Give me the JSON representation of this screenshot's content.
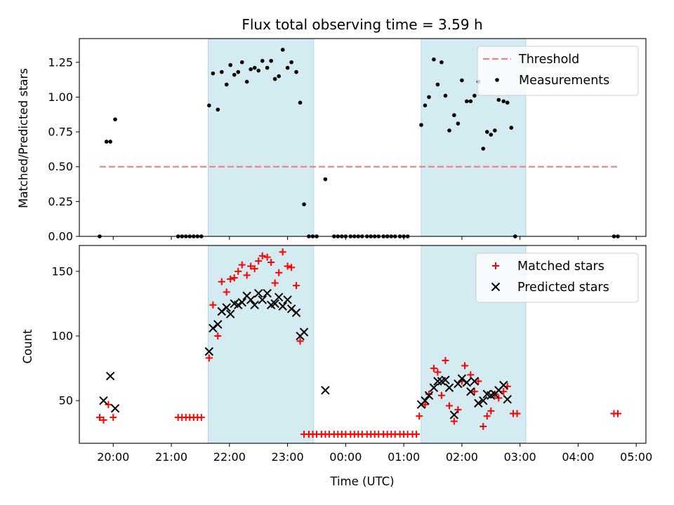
{
  "chart_data": [
    {
      "type": "scatter",
      "title": "Flux total observing time = 3.59 h",
      "xlabel": "",
      "ylabel": "Matched/Predicted stars",
      "xlim": [
        "19:25",
        "05:10"
      ],
      "ylim": [
        0,
        1.42
      ],
      "yticks": [
        0.0,
        0.25,
        0.5,
        0.75,
        1.0,
        1.25
      ],
      "ytick_labels": [
        "0.00",
        "0.25",
        "0.50",
        "0.75",
        "1.00",
        "1.25"
      ],
      "xticks": [
        "20:00",
        "21:00",
        "22:00",
        "23:00",
        "00:00",
        "01:00",
        "02:00",
        "03:00",
        "04:00",
        "05:00"
      ],
      "legend": "top-right",
      "shaded_intervals": [
        [
          "21:38",
          "23:27"
        ],
        [
          "01:18",
          "03:06"
        ]
      ],
      "series": [
        {
          "name": "Threshold",
          "kind": "dashed-line",
          "color": "#f08080",
          "points": [
            [
              "19:46",
              0.5
            ],
            [
              "04:42",
              0.5
            ]
          ]
        },
        {
          "name": "Measurements",
          "kind": "dot",
          "color": "#000000",
          "points": [
            [
              "19:46",
              0.0
            ],
            [
              "19:53",
              0.68
            ],
            [
              "19:57",
              0.68
            ],
            [
              "20:02",
              0.84
            ],
            [
              "21:07",
              0.0
            ],
            [
              "21:11",
              0.0
            ],
            [
              "21:15",
              0.0
            ],
            [
              "21:19",
              0.0
            ],
            [
              "21:23",
              0.0
            ],
            [
              "21:27",
              0.0
            ],
            [
              "21:31",
              0.0
            ],
            [
              "21:39",
              0.94
            ],
            [
              "21:43",
              1.17
            ],
            [
              "21:48",
              0.91
            ],
            [
              "21:52",
              1.18
            ],
            [
              "21:57",
              1.09
            ],
            [
              "22:01",
              1.23
            ],
            [
              "22:05",
              1.16
            ],
            [
              "22:09",
              1.18
            ],
            [
              "22:13",
              1.25
            ],
            [
              "22:18",
              1.11
            ],
            [
              "22:22",
              1.2
            ],
            [
              "22:26",
              1.21
            ],
            [
              "22:30",
              1.19
            ],
            [
              "22:34",
              1.26
            ],
            [
              "22:39",
              1.21
            ],
            [
              "22:43",
              1.26
            ],
            [
              "22:47",
              1.13
            ],
            [
              "22:51",
              1.15
            ],
            [
              "22:55",
              1.34
            ],
            [
              "23:00",
              1.21
            ],
            [
              "23:04",
              1.25
            ],
            [
              "23:09",
              1.18
            ],
            [
              "23:13",
              0.96
            ],
            [
              "23:17",
              0.23
            ],
            [
              "23:22",
              0.0
            ],
            [
              "23:26",
              0.0
            ],
            [
              "23:30",
              0.0
            ],
            [
              "23:39",
              0.41
            ],
            [
              "23:48",
              0.0
            ],
            [
              "23:52",
              0.0
            ],
            [
              "23:56",
              0.0
            ],
            [
              "00:00",
              0.0
            ],
            [
              "00:05",
              0.0
            ],
            [
              "00:09",
              0.0
            ],
            [
              "00:13",
              0.0
            ],
            [
              "00:17",
              0.0
            ],
            [
              "00:22",
              0.0
            ],
            [
              "00:26",
              0.0
            ],
            [
              "00:30",
              0.0
            ],
            [
              "00:34",
              0.0
            ],
            [
              "00:39",
              0.0
            ],
            [
              "00:43",
              0.0
            ],
            [
              "00:47",
              0.0
            ],
            [
              "00:51",
              0.0
            ],
            [
              "00:56",
              0.0
            ],
            [
              "01:00",
              0.0
            ],
            [
              "01:04",
              0.0
            ],
            [
              "01:18",
              0.8
            ],
            [
              "01:22",
              0.94
            ],
            [
              "01:26",
              1.0
            ],
            [
              "01:31",
              1.27
            ],
            [
              "01:35",
              1.09
            ],
            [
              "01:39",
              1.25
            ],
            [
              "01:43",
              1.01
            ],
            [
              "01:47",
              0.76
            ],
            [
              "01:52",
              0.87
            ],
            [
              "01:56",
              0.81
            ],
            [
              "02:00",
              1.12
            ],
            [
              "02:05",
              0.97
            ],
            [
              "02:09",
              0.97
            ],
            [
              "02:13",
              1.01
            ],
            [
              "02:17",
              1.11
            ],
            [
              "02:22",
              0.63
            ],
            [
              "02:26",
              0.75
            ],
            [
              "02:30",
              0.73
            ],
            [
              "02:34",
              0.76
            ],
            [
              "02:38",
              0.98
            ],
            [
              "02:43",
              0.97
            ],
            [
              "02:47",
              0.96
            ],
            [
              "02:51",
              0.78
            ],
            [
              "02:55",
              0.0
            ],
            [
              "04:37",
              0.0
            ],
            [
              "04:41",
              0.0
            ]
          ]
        }
      ]
    },
    {
      "type": "scatter",
      "title": "",
      "xlabel": "Time (UTC)",
      "ylabel": "Count",
      "xlim": [
        "19:25",
        "05:10"
      ],
      "ylim": [
        17,
        170
      ],
      "yticks": [
        50,
        100,
        150
      ],
      "ytick_labels": [
        "50",
        "100",
        "150"
      ],
      "xticks": [
        "20:00",
        "21:00",
        "22:00",
        "23:00",
        "00:00",
        "01:00",
        "02:00",
        "03:00",
        "04:00",
        "05:00"
      ],
      "xtick_labels": [
        "20:00",
        "21:00",
        "22:00",
        "23:00",
        "00:00",
        "01:00",
        "02:00",
        "03:00",
        "04:00",
        "05:00"
      ],
      "legend": "top-right",
      "shaded_intervals": [
        [
          "21:38",
          "23:27"
        ],
        [
          "01:18",
          "03:06"
        ]
      ],
      "series": [
        {
          "name": "Matched stars",
          "kind": "plus",
          "color": "#ff0000",
          "points": [
            [
              "19:46",
              37
            ],
            [
              "19:50",
              35
            ],
            [
              "19:55",
              47
            ],
            [
              "20:00",
              37
            ],
            [
              "21:07",
              37
            ],
            [
              "21:11",
              37
            ],
            [
              "21:15",
              37
            ],
            [
              "21:19",
              37
            ],
            [
              "21:23",
              37
            ],
            [
              "21:27",
              37
            ],
            [
              "21:31",
              37
            ],
            [
              "21:39",
              83
            ],
            [
              "21:43",
              124
            ],
            [
              "21:48",
              100
            ],
            [
              "21:52",
              142
            ],
            [
              "21:57",
              134
            ],
            [
              "22:01",
              144
            ],
            [
              "22:05",
              145
            ],
            [
              "22:09",
              150
            ],
            [
              "22:13",
              155
            ],
            [
              "22:18",
              147
            ],
            [
              "22:22",
              154
            ],
            [
              "22:26",
              152
            ],
            [
              "22:30",
              158
            ],
            [
              "22:34",
              162
            ],
            [
              "22:39",
              161
            ],
            [
              "22:43",
              157
            ],
            [
              "22:47",
              141
            ],
            [
              "22:51",
              149
            ],
            [
              "22:55",
              165
            ],
            [
              "23:00",
              154
            ],
            [
              "23:04",
              153
            ],
            [
              "23:09",
              139
            ],
            [
              "23:13",
              96
            ],
            [
              "23:17",
              24
            ],
            [
              "23:22",
              24
            ],
            [
              "23:26",
              24
            ],
            [
              "23:30",
              24
            ],
            [
              "23:35",
              24
            ],
            [
              "23:39",
              24
            ],
            [
              "23:43",
              24
            ],
            [
              "23:48",
              24
            ],
            [
              "23:52",
              24
            ],
            [
              "23:56",
              24
            ],
            [
              "00:00",
              24
            ],
            [
              "00:05",
              24
            ],
            [
              "00:09",
              24
            ],
            [
              "00:13",
              24
            ],
            [
              "00:17",
              24
            ],
            [
              "00:22",
              24
            ],
            [
              "00:26",
              24
            ],
            [
              "00:30",
              24
            ],
            [
              "00:34",
              24
            ],
            [
              "00:39",
              24
            ],
            [
              "00:43",
              24
            ],
            [
              "00:47",
              24
            ],
            [
              "00:51",
              24
            ],
            [
              "00:56",
              24
            ],
            [
              "01:00",
              24
            ],
            [
              "01:04",
              24
            ],
            [
              "01:09",
              24
            ],
            [
              "01:13",
              24
            ],
            [
              "01:16",
              38
            ],
            [
              "01:22",
              47
            ],
            [
              "01:26",
              55
            ],
            [
              "01:31",
              75
            ],
            [
              "01:35",
              72
            ],
            [
              "01:39",
              54
            ],
            [
              "01:43",
              81
            ],
            [
              "01:47",
              46
            ],
            [
              "01:52",
              34
            ],
            [
              "01:56",
              43
            ],
            [
              "02:00",
              65
            ],
            [
              "02:03",
              77
            ],
            [
              "02:09",
              70
            ],
            [
              "02:13",
              57
            ],
            [
              "02:17",
              65
            ],
            [
              "02:22",
              30
            ],
            [
              "02:26",
              38
            ],
            [
              "02:30",
              42
            ],
            [
              "02:34",
              55
            ],
            [
              "02:38",
              52
            ],
            [
              "02:43",
              57
            ],
            [
              "02:47",
              61
            ],
            [
              "02:53",
              40
            ],
            [
              "02:57",
              40
            ],
            [
              "04:37",
              40
            ],
            [
              "04:41",
              40
            ]
          ]
        },
        {
          "name": "Predicted stars",
          "kind": "x",
          "color": "#000000",
          "points": [
            [
              "19:50",
              50
            ],
            [
              "19:57",
              69
            ],
            [
              "20:02",
              44
            ],
            [
              "21:39",
              88
            ],
            [
              "21:43",
              106
            ],
            [
              "21:48",
              109
            ],
            [
              "21:52",
              119
            ],
            [
              "21:57",
              122
            ],
            [
              "22:01",
              117
            ],
            [
              "22:05",
              125
            ],
            [
              "22:09",
              124
            ],
            [
              "22:13",
              126
            ],
            [
              "22:18",
              131
            ],
            [
              "22:22",
              128
            ],
            [
              "22:26",
              124
            ],
            [
              "22:30",
              133
            ],
            [
              "22:34",
              128
            ],
            [
              "22:39",
              133
            ],
            [
              "22:43",
              124
            ],
            [
              "22:47",
              125
            ],
            [
              "22:51",
              130
            ],
            [
              "22:55",
              123
            ],
            [
              "23:00",
              128
            ],
            [
              "23:04",
              121
            ],
            [
              "23:09",
              118
            ],
            [
              "23:13",
              100
            ],
            [
              "23:17",
              103
            ],
            [
              "23:39",
              58
            ],
            [
              "01:18",
              47
            ],
            [
              "01:22",
              50
            ],
            [
              "01:26",
              54
            ],
            [
              "01:31",
              60
            ],
            [
              "01:35",
              65
            ],
            [
              "01:39",
              65
            ],
            [
              "01:43",
              66
            ],
            [
              "01:47",
              60
            ],
            [
              "01:52",
              39
            ],
            [
              "01:56",
              63
            ],
            [
              "02:00",
              67
            ],
            [
              "02:05",
              64
            ],
            [
              "02:09",
              57
            ],
            [
              "02:13",
              65
            ],
            [
              "02:17",
              48
            ],
            [
              "02:22",
              50
            ],
            [
              "02:26",
              55
            ],
            [
              "02:30",
              54
            ],
            [
              "02:34",
              55
            ],
            [
              "02:38",
              58
            ],
            [
              "02:43",
              62
            ],
            [
              "02:47",
              51
            ]
          ]
        }
      ]
    }
  ]
}
